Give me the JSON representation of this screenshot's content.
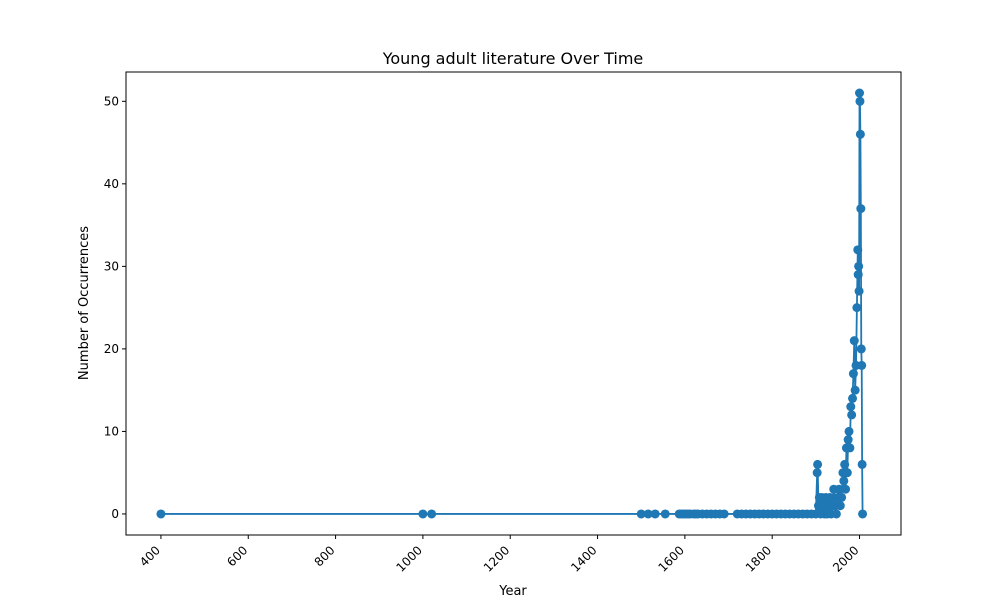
{
  "chart_data": {
    "type": "line",
    "title": "Young adult literature Over Time",
    "x_label": "Year",
    "y_label": "Number of Occurrences",
    "x": [
      400,
      1000,
      1020,
      1500,
      1516,
      1532,
      1555,
      1587,
      1592,
      1597,
      1602,
      1607,
      1612,
      1620,
      1625,
      1630,
      1640,
      1650,
      1660,
      1670,
      1680,
      1690,
      1720,
      1730,
      1740,
      1750,
      1760,
      1770,
      1780,
      1790,
      1800,
      1810,
      1820,
      1830,
      1840,
      1850,
      1860,
      1870,
      1880,
      1890,
      1900,
      1903,
      1904,
      1906,
      1908,
      1911,
      1914,
      1917,
      1920,
      1923,
      1926,
      1929,
      1932,
      1935,
      1938,
      1941,
      1944,
      1947,
      1950,
      1953,
      1956,
      1959,
      1962,
      1964,
      1966,
      1968,
      1970,
      1972,
      1974,
      1976,
      1978,
      1980,
      1982,
      1984,
      1986,
      1988,
      1990,
      1992,
      1994,
      1996,
      1997,
      1998,
      1999,
      2000,
      2001,
      2002,
      2003,
      2004,
      2005,
      2006,
      2007
    ],
    "series": [
      {
        "name": "Occurrences",
        "color": "#1f77b4",
        "values": [
          0,
          0,
          0,
          0,
          0,
          0,
          0,
          0,
          0,
          0,
          0,
          0,
          0,
          0,
          0,
          0,
          0,
          0,
          0,
          0,
          0,
          0,
          0,
          0,
          0,
          0,
          0,
          0,
          0,
          0,
          0,
          0,
          0,
          0,
          0,
          0,
          0,
          0,
          0,
          0,
          0,
          5,
          6,
          1,
          2,
          0,
          2,
          1,
          0,
          2,
          0,
          1,
          2,
          0,
          1,
          3,
          1,
          0,
          2,
          3,
          1,
          2,
          5,
          4,
          6,
          3,
          8,
          5,
          9,
          10,
          8,
          13,
          12,
          14,
          17,
          21,
          15,
          18,
          25,
          32,
          29,
          30,
          27,
          51,
          50,
          46,
          37,
          20,
          18,
          6,
          0
        ]
      }
    ],
    "xlim": [
      320,
      2095
    ],
    "ylim": [
      -2.55,
      53.55
    ],
    "xticks": [
      400,
      600,
      800,
      1000,
      1200,
      1400,
      1600,
      1800,
      2000
    ],
    "yticks": [
      0,
      10,
      20,
      30,
      40,
      50
    ]
  }
}
